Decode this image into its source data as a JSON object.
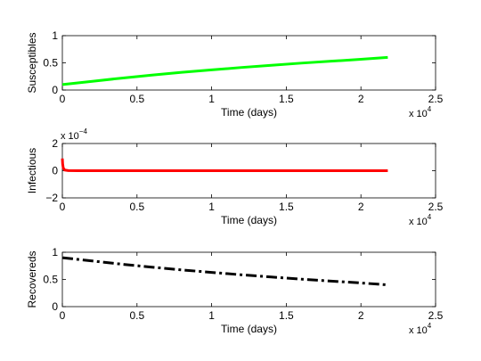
{
  "chart_data": [
    {
      "type": "line",
      "title": "",
      "xlabel": "Time (days)",
      "ylabel": "Susceptibles",
      "xlim": [
        0,
        25000
      ],
      "ylim": [
        0,
        1
      ],
      "x_ticks": [
        "0",
        "0.5",
        "1",
        "1.5",
        "2",
        "2.5"
      ],
      "x_tick_values": [
        0,
        5000,
        10000,
        15000,
        20000,
        25000
      ],
      "y_ticks": [
        "0",
        "0.5",
        "1"
      ],
      "y_tick_values": [
        0,
        0.5,
        1
      ],
      "x_multiplier": {
        "base": "x 10",
        "exp": "4"
      },
      "y_multiplier": null,
      "grid": false,
      "series": [
        {
          "color": "#00ff00",
          "style": "solid",
          "x": [
            0,
            2000,
            4000,
            6000,
            8000,
            10000,
            12000,
            14000,
            16000,
            18000,
            20000,
            21800
          ],
          "y": [
            0.1,
            0.16,
            0.22,
            0.275,
            0.325,
            0.37,
            0.415,
            0.455,
            0.495,
            0.53,
            0.565,
            0.6
          ]
        }
      ]
    },
    {
      "type": "line",
      "title": "",
      "xlabel": "Time (days)",
      "ylabel": "Infectious",
      "xlim": [
        0,
        25000
      ],
      "ylim": [
        -2,
        2
      ],
      "x_ticks": [
        "0",
        "0.5",
        "1",
        "1.5",
        "2",
        "2.5"
      ],
      "x_tick_values": [
        0,
        5000,
        10000,
        15000,
        20000,
        25000
      ],
      "y_ticks": [
        "−2",
        "0",
        "2"
      ],
      "y_tick_values": [
        -2,
        0,
        2
      ],
      "x_multiplier": {
        "base": "x 10",
        "exp": "4"
      },
      "y_multiplier": {
        "base": "x 10",
        "exp": "−4"
      },
      "grid": false,
      "series": [
        {
          "color": "#ff0000",
          "style": "solid",
          "x": [
            0,
            20,
            60,
            150,
            400,
            1000,
            5000,
            10000,
            15000,
            20000,
            21800
          ],
          "y": [
            0.9,
            0.5,
            0.2,
            0.05,
            0.01,
            0.002,
            0.001,
            0.001,
            0.001,
            0.001,
            0.001
          ]
        }
      ]
    },
    {
      "type": "line",
      "title": "",
      "xlabel": "Time (days)",
      "ylabel": "Recovereds",
      "xlim": [
        0,
        25000
      ],
      "ylim": [
        0,
        1
      ],
      "x_ticks": [
        "0",
        "0.5",
        "1",
        "1.5",
        "2",
        "2.5"
      ],
      "x_tick_values": [
        0,
        5000,
        10000,
        15000,
        20000,
        25000
      ],
      "y_ticks": [
        "0",
        "0.5",
        "1"
      ],
      "y_tick_values": [
        0,
        0.5,
        1
      ],
      "x_multiplier": {
        "base": "x 10",
        "exp": "4"
      },
      "y_multiplier": null,
      "grid": false,
      "series": [
        {
          "color": "#000000",
          "style": "dashdot",
          "x": [
            0,
            2000,
            4000,
            6000,
            8000,
            10000,
            12000,
            14000,
            16000,
            18000,
            20000,
            21800
          ],
          "y": [
            0.9,
            0.84,
            0.78,
            0.725,
            0.675,
            0.63,
            0.585,
            0.545,
            0.505,
            0.47,
            0.435,
            0.4
          ]
        }
      ]
    }
  ]
}
